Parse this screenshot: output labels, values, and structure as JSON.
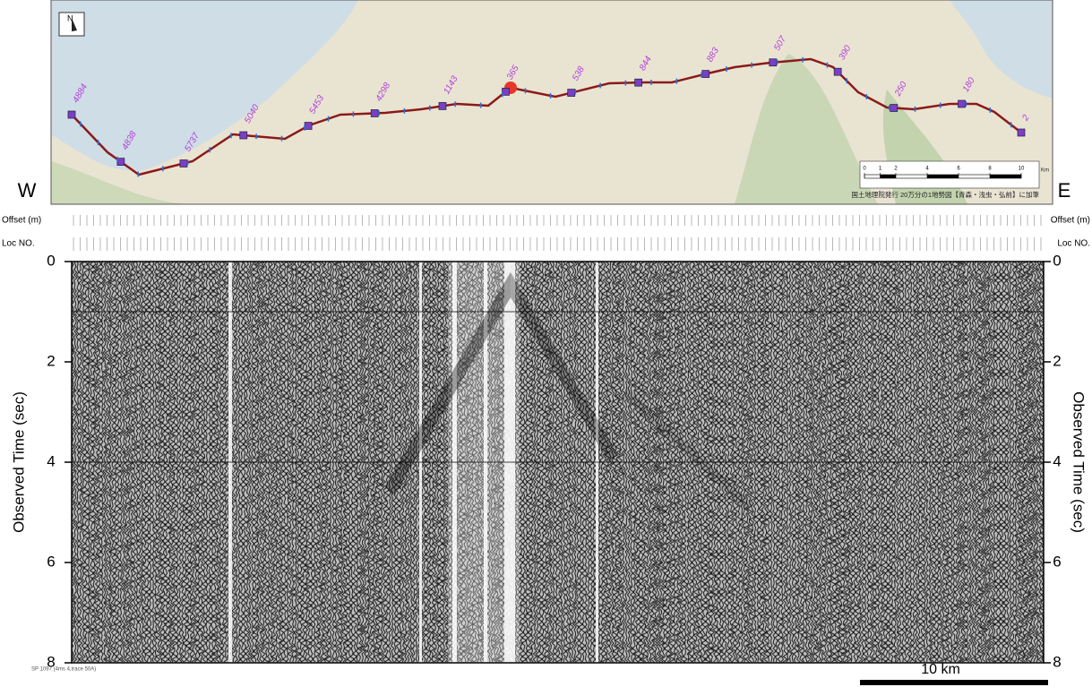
{
  "map": {
    "north": "N",
    "credit": "国土地理院発行 20万分の1地勢図【青森・浅虫・弘前】に加筆",
    "scale_ticks": [
      0,
      1,
      2,
      4,
      6,
      8,
      10
    ],
    "scale_unit": "Km",
    "shot_labels": [
      "4884",
      "4838",
      "5737",
      "5040",
      "5453",
      "4298",
      "1143",
      "365",
      "538",
      "844",
      "883",
      "507",
      "390",
      "250",
      "180",
      "2"
    ]
  },
  "section": {
    "left_label": "W",
    "right_label": "E",
    "row_labels": [
      "Offset (m)",
      "Loc NO."
    ],
    "y_label": "Observed Time (sec)",
    "ylim": [
      0,
      8
    ],
    "yticks": [
      0,
      2,
      4,
      6,
      8
    ],
    "scale_bar": "10 km",
    "footnote": "SP 1097 (4ms 4,trace 50A)"
  }
}
